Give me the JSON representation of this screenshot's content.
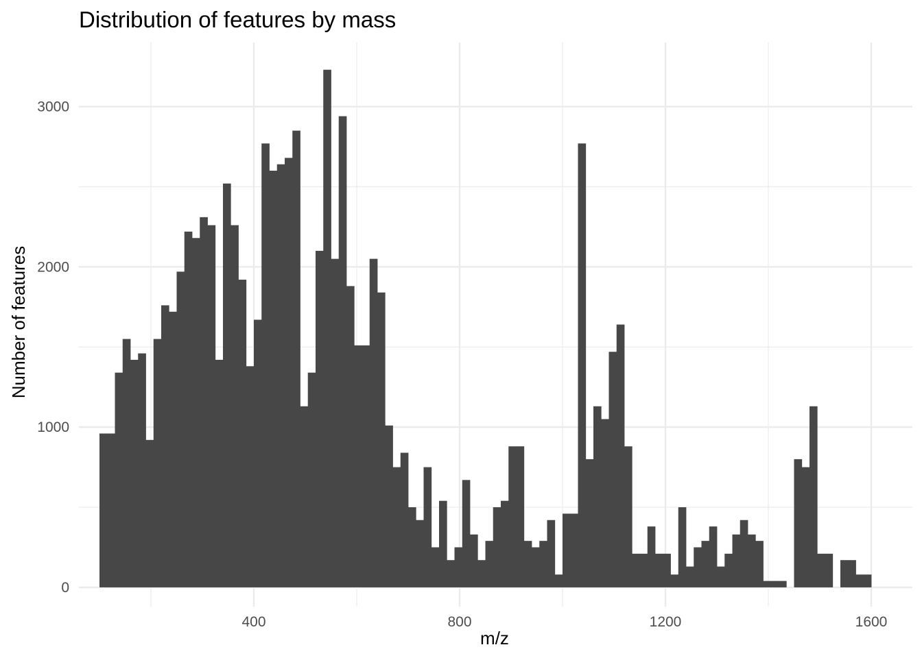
{
  "chart_data": {
    "type": "bar",
    "title": "Distribution of features by mass",
    "xlabel": "m/z",
    "ylabel": "Number of features",
    "xlim": [
      60,
      1680
    ],
    "ylim": [
      -120,
      3400
    ],
    "x_ticks": [
      400,
      800,
      1200,
      1600
    ],
    "x_minor_ticks": [
      200,
      600,
      1000,
      1400
    ],
    "y_ticks": [
      0,
      1000,
      2000,
      3000
    ],
    "y_minor_ticks": [
      500,
      1500,
      2500
    ],
    "grid": true,
    "bin_width": 15,
    "bin_start": 100,
    "values": [
      960,
      960,
      1340,
      1550,
      1420,
      1460,
      920,
      1550,
      1760,
      1720,
      1970,
      2220,
      2180,
      2310,
      2260,
      1420,
      2520,
      2260,
      1920,
      1380,
      1670,
      2770,
      2600,
      2640,
      2680,
      2850,
      1130,
      1340,
      2100,
      3230,
      2050,
      2940,
      1880,
      1510,
      1510,
      2050,
      1840,
      1010,
      750,
      840,
      500,
      420,
      750,
      250,
      540,
      170,
      250,
      670,
      330,
      170,
      290,
      500,
      540,
      880,
      880,
      290,
      250,
      290,
      420,
      80,
      460,
      460,
      2770,
      800,
      1130,
      1050,
      1470,
      1640,
      880,
      210,
      210,
      380,
      210,
      210,
      80,
      500,
      130,
      250,
      290,
      380,
      130,
      210,
      330,
      420,
      330,
      290,
      40,
      40,
      40,
      0,
      800,
      750,
      1130,
      210,
      210,
      0,
      170,
      170,
      80,
      80
    ]
  }
}
